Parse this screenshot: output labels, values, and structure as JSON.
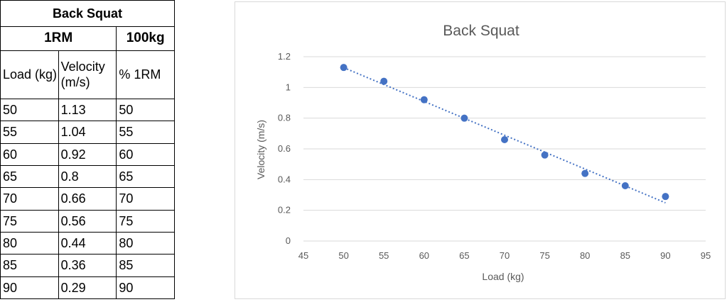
{
  "table": {
    "title": "Back Squat",
    "rm_label": "1RM",
    "rm_value": "100kg",
    "headers": [
      "Load (kg)",
      "Velocity (m/s)",
      "% 1RM"
    ],
    "rows": [
      [
        "50",
        "1.13",
        "50"
      ],
      [
        "55",
        "1.04",
        "55"
      ],
      [
        "60",
        "0.92",
        "60"
      ],
      [
        "65",
        "0.8",
        "65"
      ],
      [
        "70",
        "0.66",
        "70"
      ],
      [
        "75",
        "0.56",
        "75"
      ],
      [
        "80",
        "0.44",
        "80"
      ],
      [
        "85",
        "0.36",
        "85"
      ],
      [
        "90",
        "0.29",
        "90"
      ]
    ]
  },
  "chart_data": {
    "type": "scatter",
    "title": "Back Squat",
    "xlabel": "Load (kg)",
    "ylabel": "Velocity (m/s)",
    "xlim": [
      45,
      95
    ],
    "ylim": [
      0,
      1.2
    ],
    "xticks": [
      "45",
      "50",
      "55",
      "60",
      "65",
      "70",
      "75",
      "80",
      "85",
      "90",
      "95"
    ],
    "yticks": [
      "0",
      "0.2",
      "0.4",
      "0.6",
      "0.8",
      "1",
      "1.2"
    ],
    "grid": true,
    "trendline": "linear",
    "series": [
      {
        "x": [
          50,
          55,
          60,
          65,
          70,
          75,
          80,
          85,
          90
        ],
        "y": [
          1.13,
          1.04,
          0.92,
          0.8,
          0.66,
          0.56,
          0.44,
          0.36,
          0.29
        ]
      }
    ],
    "colors": {
      "marker": "#4472C4",
      "trendline": "#4472C4",
      "grid": "#d9d9d9",
      "text": "#595959"
    }
  }
}
